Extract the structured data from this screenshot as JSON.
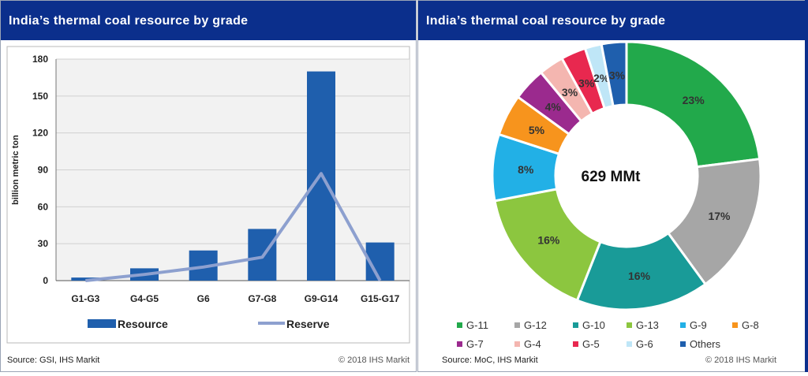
{
  "left": {
    "title": "India’s thermal coal resource  by grade",
    "source": "Source: GSI, IHS Markit",
    "copyright": "© 2018 IHS Markit"
  },
  "right": {
    "title": "India’s thermal coal resource  by grade",
    "source": "Source: MoC, IHS Markit",
    "copyright": "© 2018 IHS Markit"
  },
  "chart_data": [
    {
      "type": "bar",
      "title": "India’s thermal coal resource  by grade",
      "ylabel": "billion metric ton",
      "ylim": [
        0,
        180
      ],
      "yticks": [
        0,
        30,
        60,
        90,
        120,
        150,
        180
      ],
      "categories": [
        "G1-G3",
        "G4-G5",
        "G6",
        "G7-G8",
        "G9-G14",
        "G15-G17"
      ],
      "series": [
        {
          "name": "Resource",
          "kind": "bar",
          "color": "#1f5fad",
          "values": [
            2.5,
            10,
            24.5,
            42,
            170,
            31
          ]
        },
        {
          "name": "Reserve",
          "kind": "line",
          "color": "#8da0cf",
          "values": [
            0,
            5,
            11,
            19,
            87,
            0
          ]
        }
      ],
      "grid": true,
      "legend": "bottom"
    },
    {
      "type": "pie",
      "title": "India’s thermal coal resource  by grade",
      "center_label": "629 MMt",
      "donut": true,
      "legend": "bottom",
      "slices": [
        {
          "name": "G-11",
          "value": 23,
          "label": "23%",
          "color": "#22a94b"
        },
        {
          "name": "G-12",
          "value": 17,
          "label": "17%",
          "color": "#a6a6a6"
        },
        {
          "name": "G-10",
          "value": 16,
          "label": "16%",
          "color": "#199b98"
        },
        {
          "name": "G-13",
          "value": 16,
          "label": "16%",
          "color": "#8cc63f"
        },
        {
          "name": "G-9",
          "value": 8,
          "label": "8%",
          "color": "#22b0e6"
        },
        {
          "name": "G-8",
          "value": 5,
          "label": "5%",
          "color": "#f7941d"
        },
        {
          "name": "G-7",
          "value": 4,
          "label": "4%",
          "color": "#9b2a8e"
        },
        {
          "name": "G-4",
          "value": 3,
          "label": "3%",
          "color": "#f4b6b0"
        },
        {
          "name": "G-5",
          "value": 3,
          "label": "3%",
          "color": "#e8284f"
        },
        {
          "name": "G-6",
          "value": 2,
          "label": "2%",
          "color": "#bfe6f7"
        },
        {
          "name": "Others",
          "value": 3,
          "label": "3%",
          "color": "#1f5fad"
        }
      ]
    }
  ]
}
